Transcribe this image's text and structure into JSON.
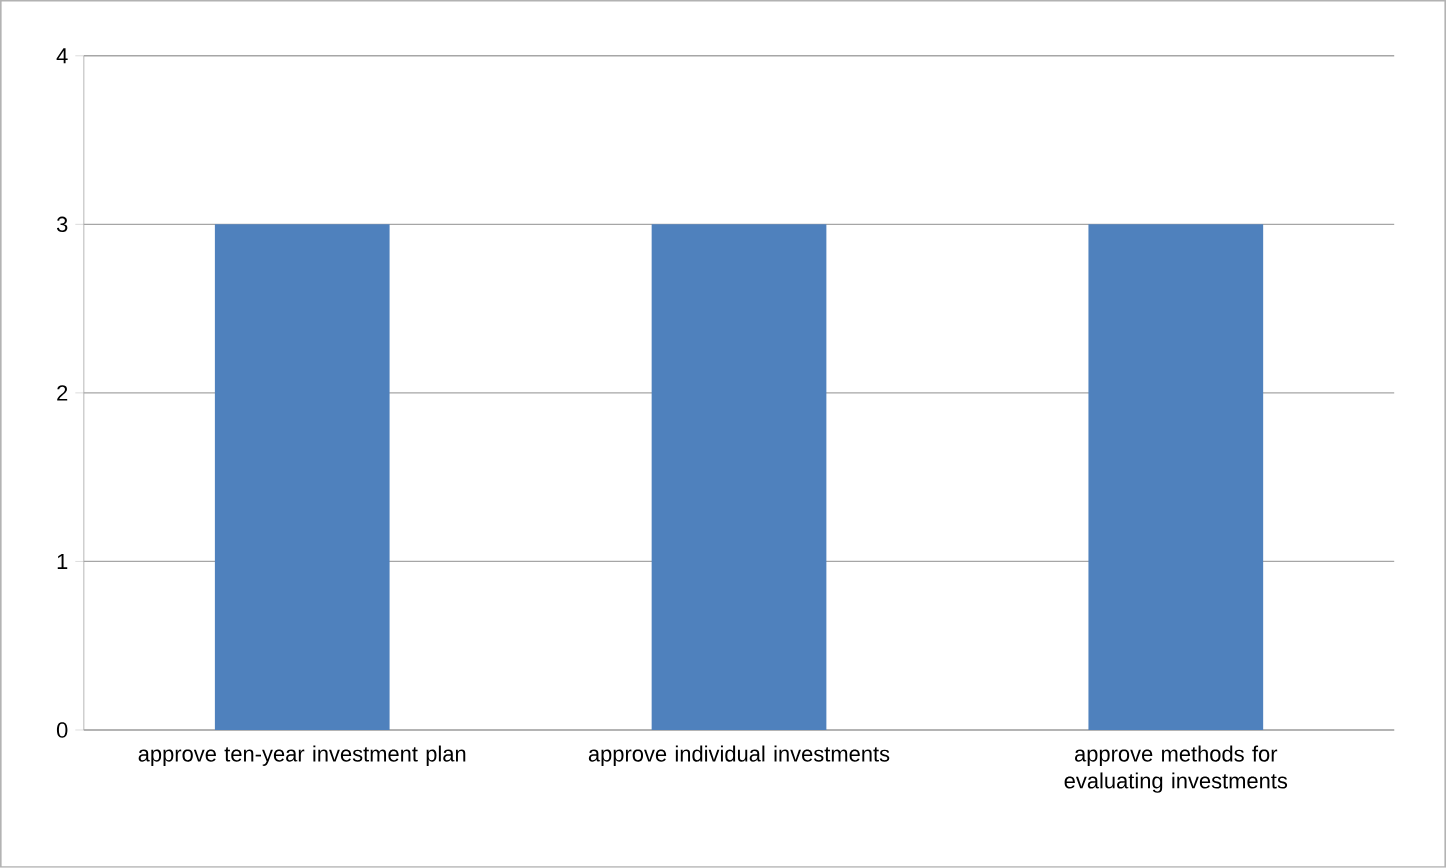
{
  "chart_data": {
    "type": "bar",
    "categories": [
      "approve ten-year investment plan",
      "approve individual investments",
      "approve methods for evaluating investments"
    ],
    "values": [
      3,
      3,
      3
    ],
    "color": "#4f81bd",
    "ylim": [
      0,
      4
    ],
    "yticks": [
      0,
      1,
      2,
      3,
      4
    ],
    "grid": "y"
  }
}
